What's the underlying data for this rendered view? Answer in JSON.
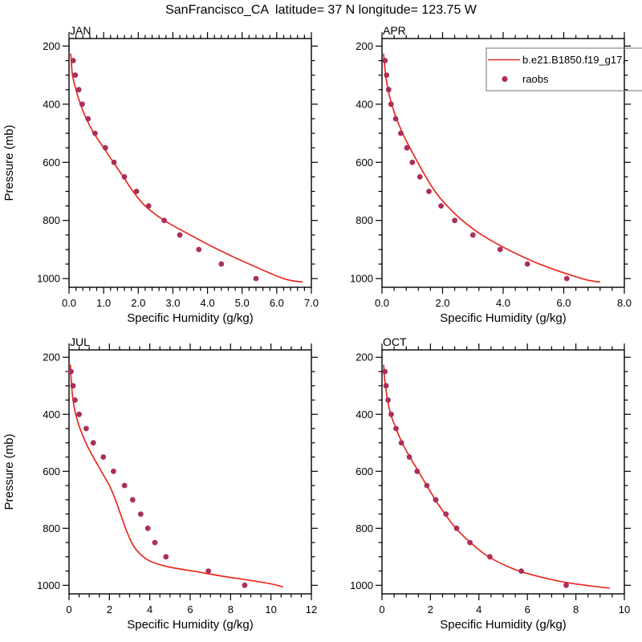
{
  "page_title": "SanFrancisco_CA  latitude= 37 N longitude= 123.75 W",
  "colors": {
    "background": "#ffffff",
    "model_line": "#ea2a20",
    "raobs_dot": "#ab2f5a",
    "axis": "#000000",
    "legend_border": "#888888"
  },
  "legend": {
    "position": "top-right-of-APR-panel",
    "model_label": "b.e21.B1850.f19_g17.",
    "raobs_label": "raobs"
  },
  "chart_data": [
    {
      "type": "line",
      "title": "JAN",
      "xlabel": "Specific Humidity (g/kg)",
      "ylabel": "Pressure (mb)",
      "xlim": [
        0,
        7
      ],
      "ylim": [
        1030,
        174
      ],
      "y_axis_inverted": true,
      "grid": false,
      "x_ticks": [
        0.0,
        1.0,
        2.0,
        3.0,
        4.0,
        5.0,
        6.0,
        7.0
      ],
      "x_tick_labels": [
        "0.0",
        "1.0",
        "2.0",
        "3.0",
        "4.0",
        "5.0",
        "6.0",
        "7.0"
      ],
      "x_minor_step": 0.2,
      "y_ticks": [
        200,
        400,
        600,
        800,
        1000
      ],
      "y_minor_step": 50,
      "series": [
        {
          "name": "b.e21.B1850.f19_g17.",
          "style": "line",
          "points": [
            [
              0.05,
              226
            ],
            [
              0.07,
              258
            ],
            [
              0.1,
              300
            ],
            [
              0.2,
              350
            ],
            [
              0.33,
              400
            ],
            [
              0.5,
              450
            ],
            [
              0.72,
              500
            ],
            [
              1.0,
              550
            ],
            [
              1.28,
              600
            ],
            [
              1.57,
              650
            ],
            [
              1.85,
              700
            ],
            [
              2.2,
              750
            ],
            [
              2.75,
              800
            ],
            [
              3.5,
              850
            ],
            [
              4.3,
              900
            ],
            [
              5.2,
              950
            ],
            [
              6.2,
              1000
            ],
            [
              6.75,
              1012
            ]
          ]
        },
        {
          "name": "raobs",
          "style": "scatter",
          "points": [
            [
              0.12,
              250
            ],
            [
              0.18,
              300
            ],
            [
              0.28,
              350
            ],
            [
              0.38,
              400
            ],
            [
              0.55,
              450
            ],
            [
              0.75,
              500
            ],
            [
              1.05,
              550
            ],
            [
              1.3,
              600
            ],
            [
              1.6,
              650
            ],
            [
              1.95,
              700
            ],
            [
              2.3,
              750
            ],
            [
              2.75,
              800
            ],
            [
              3.2,
              850
            ],
            [
              3.75,
              900
            ],
            [
              4.4,
              950
            ],
            [
              5.4,
              1000
            ]
          ]
        }
      ]
    },
    {
      "type": "line",
      "title": "APR",
      "xlabel": "Specific Humidity (g/kg)",
      "ylabel": "Pressure (mb)",
      "xlim": [
        0,
        8
      ],
      "ylim": [
        1030,
        174
      ],
      "y_axis_inverted": true,
      "grid": false,
      "x_ticks": [
        0.0,
        2.0,
        4.0,
        6.0,
        8.0
      ],
      "x_tick_labels": [
        "0.0",
        "2.0",
        "4.0",
        "6.0",
        "8.0"
      ],
      "x_minor_step": 0.4,
      "y_ticks": [
        200,
        400,
        600,
        800,
        1000
      ],
      "y_minor_step": 50,
      "series": [
        {
          "name": "b.e21.B1850.f19_g17.",
          "style": "line",
          "points": [
            [
              0.05,
              226
            ],
            [
              0.08,
              258
            ],
            [
              0.12,
              300
            ],
            [
              0.2,
              350
            ],
            [
              0.32,
              400
            ],
            [
              0.48,
              450
            ],
            [
              0.68,
              500
            ],
            [
              0.92,
              550
            ],
            [
              1.18,
              600
            ],
            [
              1.45,
              650
            ],
            [
              1.75,
              700
            ],
            [
              2.15,
              750
            ],
            [
              2.65,
              800
            ],
            [
              3.3,
              850
            ],
            [
              4.15,
              900
            ],
            [
              5.2,
              950
            ],
            [
              6.6,
              1000
            ],
            [
              7.2,
              1012
            ]
          ]
        },
        {
          "name": "raobs",
          "style": "scatter",
          "points": [
            [
              0.1,
              250
            ],
            [
              0.15,
              300
            ],
            [
              0.22,
              350
            ],
            [
              0.3,
              400
            ],
            [
              0.45,
              450
            ],
            [
              0.62,
              500
            ],
            [
              0.82,
              550
            ],
            [
              1.0,
              600
            ],
            [
              1.25,
              650
            ],
            [
              1.55,
              700
            ],
            [
              1.95,
              750
            ],
            [
              2.4,
              800
            ],
            [
              3.0,
              850
            ],
            [
              3.9,
              900
            ],
            [
              4.8,
              950
            ],
            [
              6.1,
              1000
            ]
          ]
        }
      ]
    },
    {
      "type": "line",
      "title": "JUL",
      "xlabel": "Specific Humidity (g/kg)",
      "ylabel": "Pressure (mb)",
      "xlim": [
        0,
        12
      ],
      "ylim": [
        1030,
        174
      ],
      "y_axis_inverted": true,
      "grid": false,
      "x_ticks": [
        0,
        2,
        4,
        6,
        8,
        10,
        12
      ],
      "x_tick_labels": [
        "0",
        "2",
        "4",
        "6",
        "8",
        "10",
        "12"
      ],
      "x_minor_step": 0.5,
      "y_ticks": [
        200,
        400,
        600,
        800,
        1000
      ],
      "y_minor_step": 50,
      "series": [
        {
          "name": "b.e21.B1850.f19_g17.",
          "style": "line",
          "points": [
            [
              0.07,
              226
            ],
            [
              0.1,
              270
            ],
            [
              0.14,
              310
            ],
            [
              0.2,
              350
            ],
            [
              0.3,
              390
            ],
            [
              0.45,
              430
            ],
            [
              0.65,
              470
            ],
            [
              0.9,
              510
            ],
            [
              1.2,
              550
            ],
            [
              1.6,
              600
            ],
            [
              2.0,
              650
            ],
            [
              2.3,
              700
            ],
            [
              2.55,
              750
            ],
            [
              2.8,
              800
            ],
            [
              3.1,
              850
            ],
            [
              3.45,
              885
            ],
            [
              4.0,
              915
            ],
            [
              4.9,
              935
            ],
            [
              6.3,
              952
            ],
            [
              7.6,
              968
            ],
            [
              8.9,
              982
            ],
            [
              10.0,
              995
            ],
            [
              10.6,
              1006
            ]
          ]
        },
        {
          "name": "raobs",
          "style": "scatter",
          "points": [
            [
              0.1,
              250
            ],
            [
              0.2,
              300
            ],
            [
              0.3,
              350
            ],
            [
              0.5,
              400
            ],
            [
              0.85,
              450
            ],
            [
              1.2,
              500
            ],
            [
              1.7,
              550
            ],
            [
              2.2,
              600
            ],
            [
              2.75,
              650
            ],
            [
              3.15,
              700
            ],
            [
              3.55,
              750
            ],
            [
              3.9,
              800
            ],
            [
              4.25,
              850
            ],
            [
              4.8,
              900
            ],
            [
              6.9,
              950
            ],
            [
              8.7,
              1000
            ]
          ]
        }
      ]
    },
    {
      "type": "line",
      "title": "OCT",
      "xlabel": "Specific Humidity (g/kg)",
      "ylabel": "Pressure (mb)",
      "xlim": [
        0,
        10
      ],
      "ylim": [
        1030,
        174
      ],
      "y_axis_inverted": true,
      "grid": false,
      "x_ticks": [
        0,
        2,
        4,
        6,
        8,
        10
      ],
      "x_tick_labels": [
        "0",
        "2",
        "4",
        "6",
        "8",
        "10"
      ],
      "x_minor_step": 0.5,
      "y_ticks": [
        200,
        400,
        600,
        800,
        1000
      ],
      "y_minor_step": 50,
      "series": [
        {
          "name": "b.e21.B1850.f19_g17.",
          "style": "line",
          "points": [
            [
              0.07,
              226
            ],
            [
              0.1,
              268
            ],
            [
              0.16,
              310
            ],
            [
              0.25,
              360
            ],
            [
              0.38,
              405
            ],
            [
              0.58,
              450
            ],
            [
              0.83,
              500
            ],
            [
              1.15,
              550
            ],
            [
              1.5,
              600
            ],
            [
              1.85,
              650
            ],
            [
              2.2,
              700
            ],
            [
              2.6,
              750
            ],
            [
              3.05,
              800
            ],
            [
              3.65,
              850
            ],
            [
              4.4,
              900
            ],
            [
              5.5,
              945
            ],
            [
              6.6,
              972
            ],
            [
              7.6,
              990
            ],
            [
              8.6,
              1002
            ],
            [
              9.4,
              1010
            ]
          ]
        },
        {
          "name": "raobs",
          "style": "scatter",
          "points": [
            [
              0.12,
              250
            ],
            [
              0.17,
              300
            ],
            [
              0.25,
              350
            ],
            [
              0.38,
              400
            ],
            [
              0.58,
              450
            ],
            [
              0.8,
              500
            ],
            [
              1.13,
              550
            ],
            [
              1.45,
              600
            ],
            [
              1.85,
              650
            ],
            [
              2.22,
              700
            ],
            [
              2.64,
              750
            ],
            [
              3.08,
              800
            ],
            [
              3.63,
              850
            ],
            [
              4.45,
              900
            ],
            [
              5.75,
              950
            ],
            [
              7.6,
              1000
            ]
          ]
        }
      ]
    }
  ]
}
